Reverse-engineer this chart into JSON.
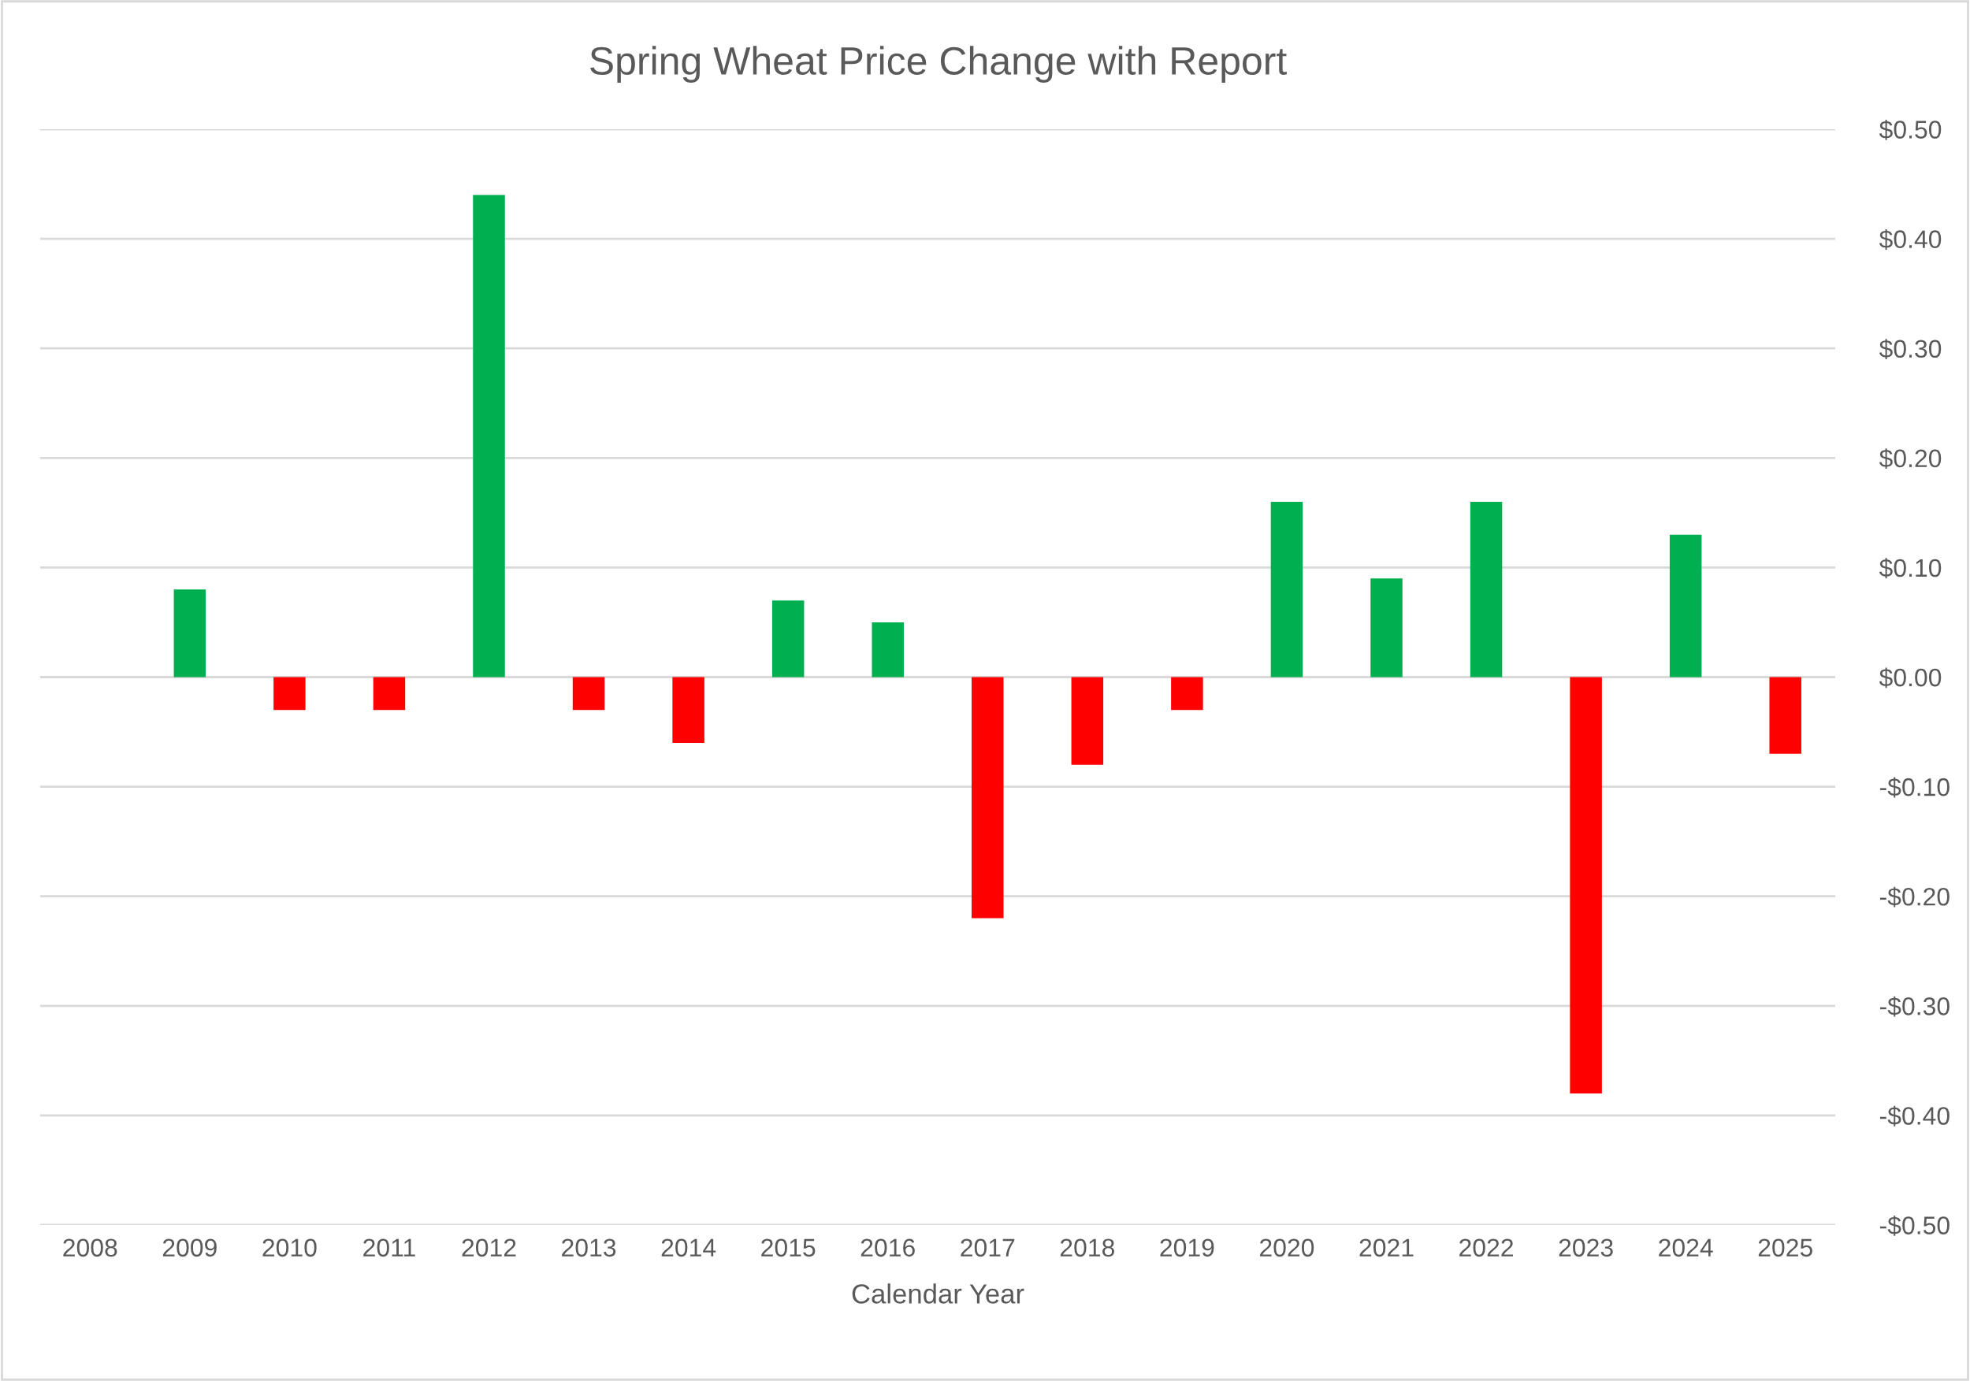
{
  "chart_data": {
    "type": "bar",
    "title": "Spring Wheat Price Change with Report",
    "xlabel": "Calendar Year",
    "categories": [
      "2008",
      "2009",
      "2010",
      "2011",
      "2012",
      "2013",
      "2014",
      "2015",
      "2016",
      "2017",
      "2018",
      "2019",
      "2020",
      "2021",
      "2022",
      "2023",
      "2024",
      "2025"
    ],
    "values": [
      null,
      0.08,
      -0.03,
      -0.03,
      0.44,
      -0.03,
      -0.06,
      0.07,
      0.05,
      -0.22,
      -0.08,
      -0.03,
      0.16,
      0.09,
      0.16,
      -0.38,
      0.13,
      -0.07
    ],
    "colors": [
      null,
      "#00b050",
      "#ff0000",
      "#ff0000",
      "#00b050",
      "#ff0000",
      "#ff0000",
      "#00b050",
      "#00b050",
      "#ff0000",
      "#ff0000",
      "#ff0000",
      "#00b050",
      "#00b050",
      "#00b050",
      "#ff0000",
      "#00b050",
      "#ff0000"
    ],
    "ylim": [
      -0.5,
      0.5
    ],
    "yticks": [
      {
        "value": -0.5,
        "label": "-$0.50"
      },
      {
        "value": -0.4,
        "label": "-$0.40"
      },
      {
        "value": -0.3,
        "label": "-$0.30"
      },
      {
        "value": -0.2,
        "label": "-$0.20"
      },
      {
        "value": -0.1,
        "label": "-$0.10"
      },
      {
        "value": 0,
        "label": "$0.00"
      },
      {
        "value": 0.1,
        "label": "$0.10"
      },
      {
        "value": 0.2,
        "label": "$0.20"
      },
      {
        "value": 0.3,
        "label": "$0.30"
      },
      {
        "value": 0.4,
        "label": "$0.40"
      },
      {
        "value": 0.5,
        "label": "$0.50"
      }
    ],
    "grid": "y",
    "legend": false
  }
}
